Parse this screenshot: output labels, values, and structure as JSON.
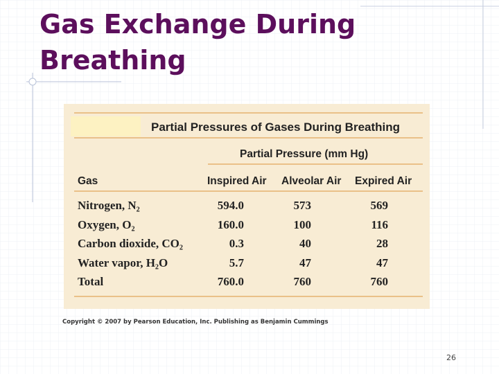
{
  "slide": {
    "title": "Gas Exchange During Breathing",
    "table": {
      "title": "Partial Pressures of Gases During Breathing",
      "subheader": "Partial Pressure (mm Hg)",
      "headers": [
        "Gas",
        "Inspired Air",
        "Alveolar Air",
        "Expired Air"
      ],
      "rows": [
        [
          "Nitrogen, N₂",
          "594.0",
          "573",
          "569"
        ],
        [
          "Oxygen, O₂",
          "160.0",
          "100",
          "116"
        ],
        [
          "Carbon dioxide, CO₂",
          "0.3",
          "40",
          "28"
        ],
        [
          "Water vapor, H₂O",
          "5.7",
          "47",
          "47"
        ],
        [
          "Total",
          "760.0",
          "760",
          "760"
        ]
      ]
    },
    "copyright": "Copyright © 2007 by Pearson Education, Inc. Publishing as Benjamin Cummings",
    "page_number": "26"
  }
}
